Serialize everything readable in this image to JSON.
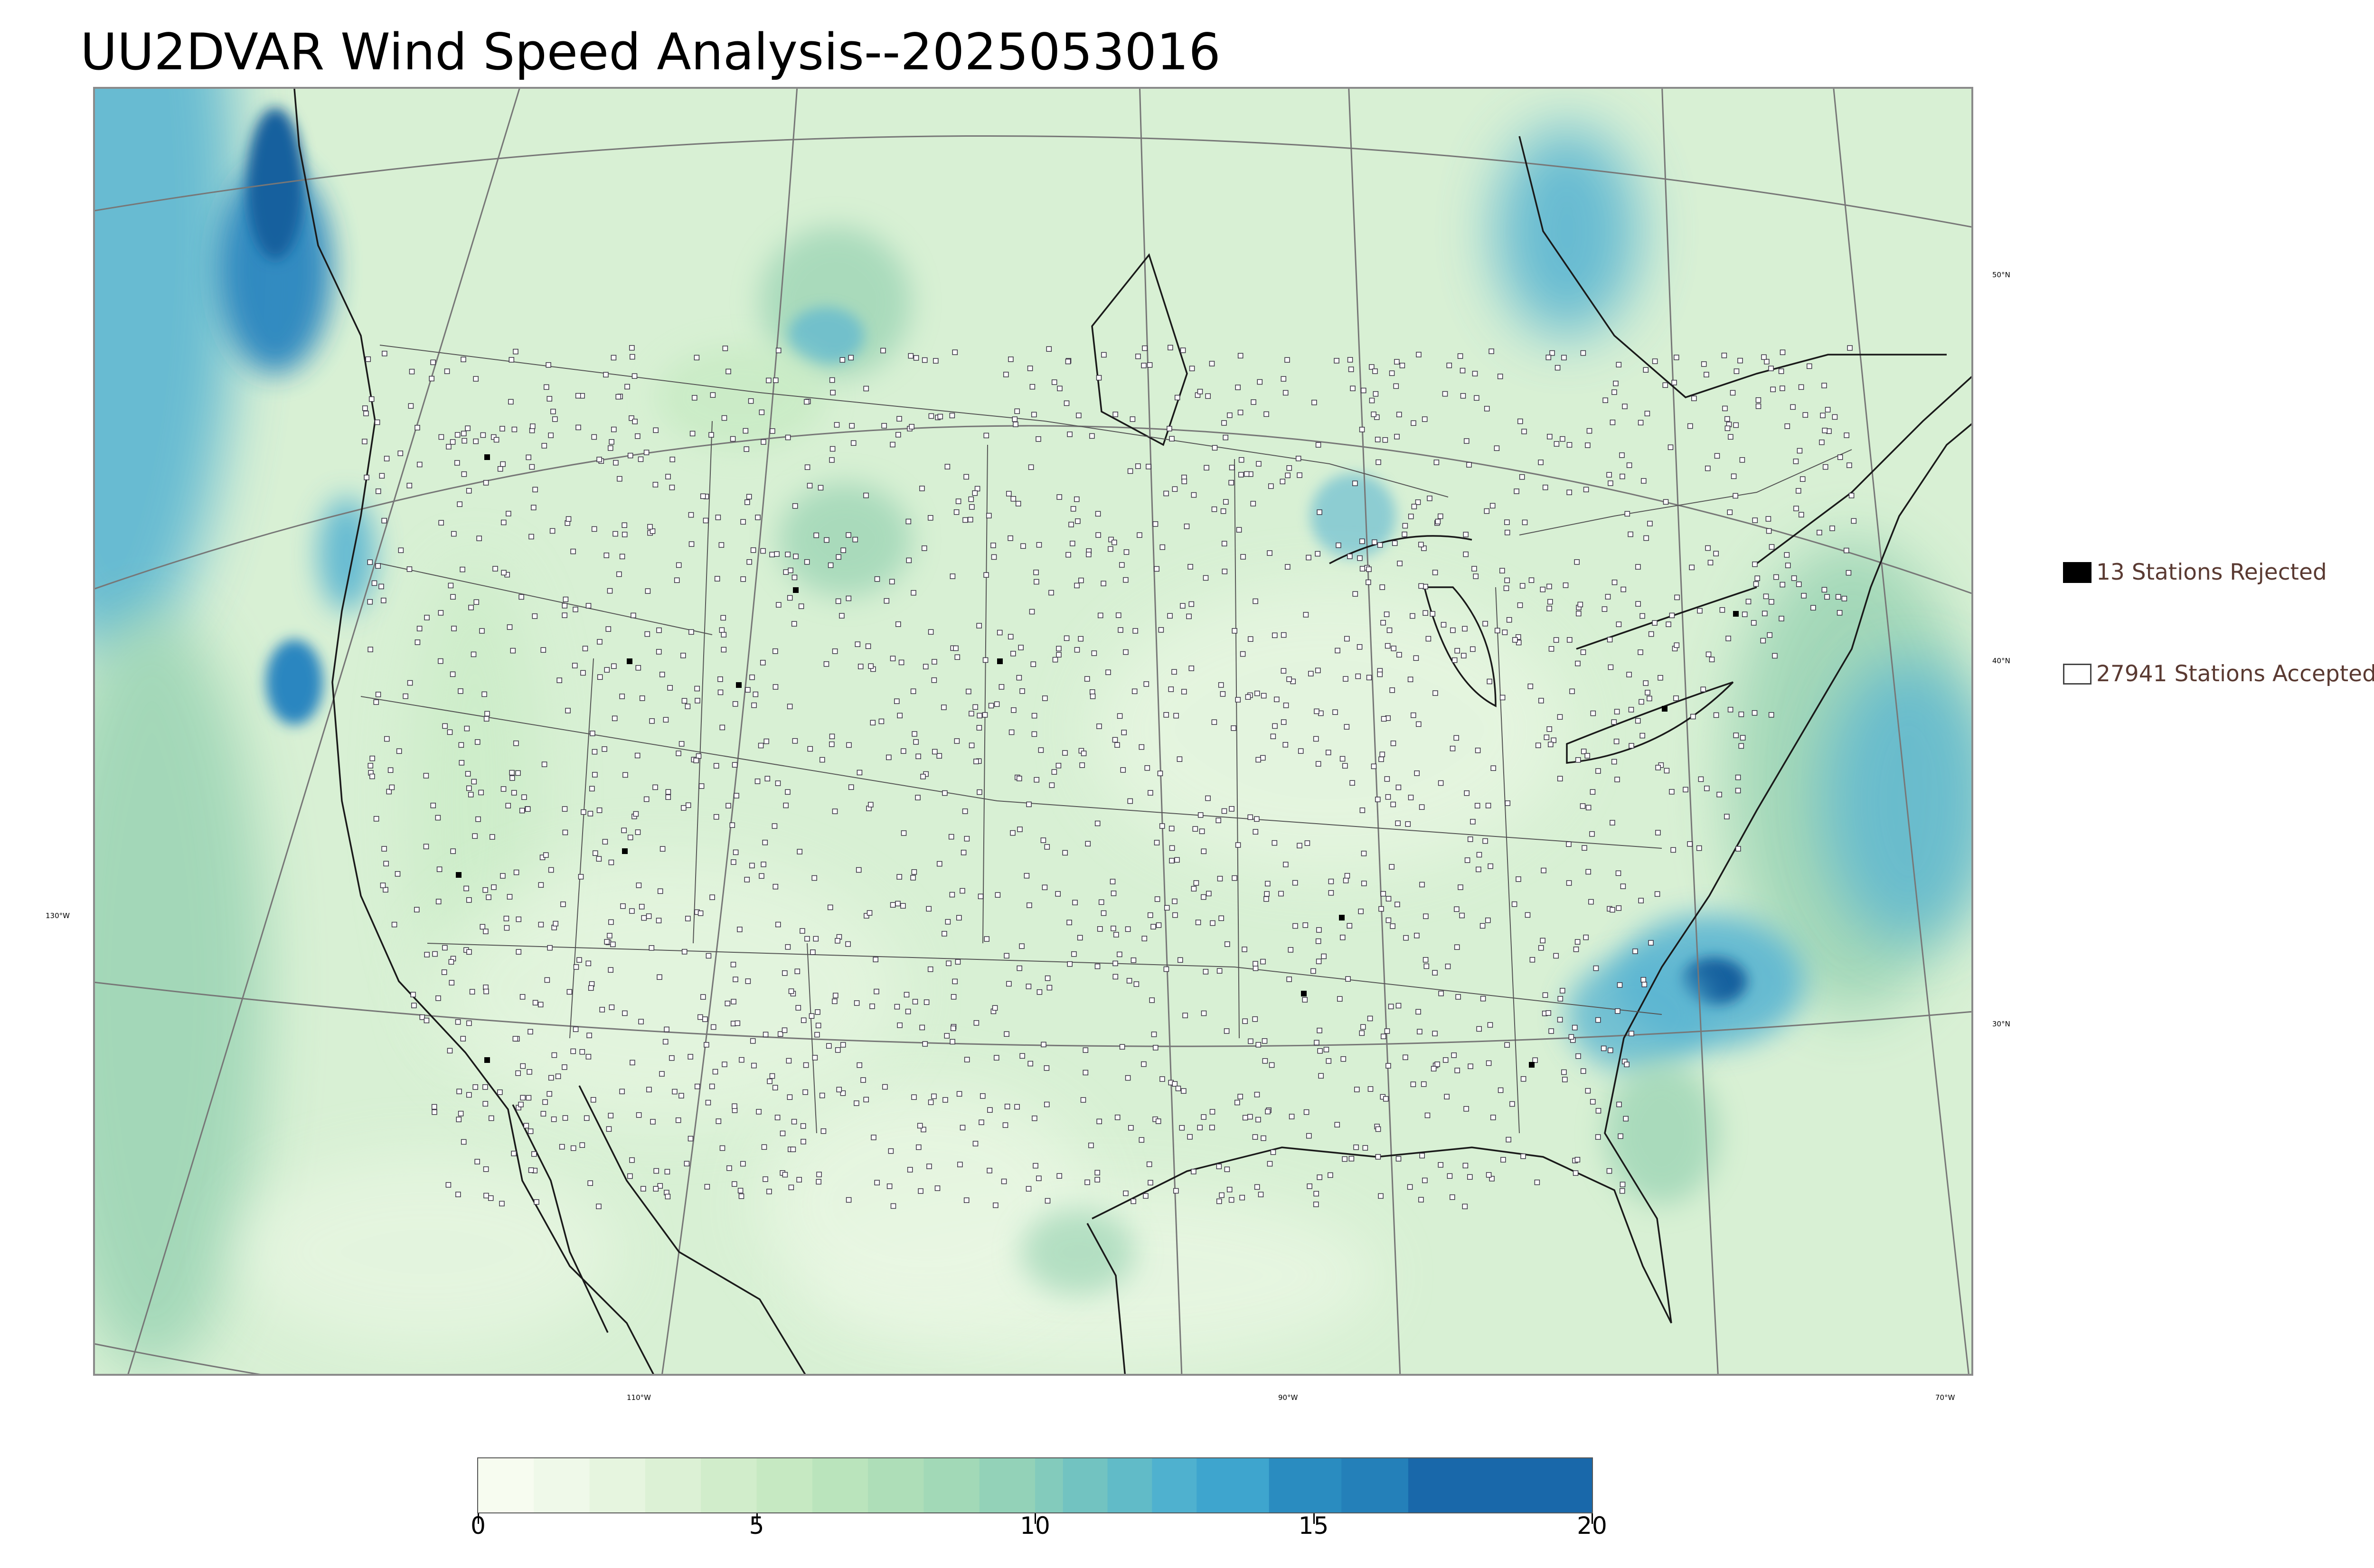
{
  "title": "UU2DVAR Wind Speed Analysis--2025053016",
  "map": {
    "projection": "lambert-conformal",
    "meridian_labels": [
      "130°W",
      "110°W",
      "90°W",
      "70°W"
    ],
    "parallel_labels": [
      "50°N",
      "40°N",
      "30°N"
    ],
    "shading_colors": {
      "calm": "#e9f7e3",
      "light": "#c8ebc4",
      "moderate": "#9ed5b6",
      "fresh": "#5bb6d2",
      "strong": "#2b86c0",
      "gale": "#14609e"
    }
  },
  "legend": {
    "rejected": {
      "count": "13",
      "label": "13 Stations Rejected",
      "swatch_color": "#000000"
    },
    "accepted": {
      "count": "27941",
      "label": "27941 Stations Accepted",
      "swatch_color": "#ffffff"
    }
  },
  "colorbar": {
    "min": 0,
    "max": 20,
    "ticks": [
      "0",
      "5",
      "10",
      "15",
      "20"
    ],
    "tick_values": [
      0,
      5,
      10,
      15,
      20
    ],
    "levels": [
      0,
      1,
      2,
      3,
      4,
      5,
      6,
      7,
      8,
      9,
      10,
      11,
      12,
      13,
      14,
      15,
      16,
      17,
      18,
      19,
      20
    ],
    "colors": [
      "#f7fcf0",
      "#eff9e9",
      "#e6f5df",
      "#dcf1d5",
      "#d1edcb",
      "#c6e9c2",
      "#bae4bc",
      "#aedeb8",
      "#a2d9b7",
      "#93d2b8",
      "#83cbbc",
      "#72c3c1",
      "#61bbc8",
      "#4fb1cf",
      "#3ea5ce",
      "#3299c8",
      "#2a8cc0",
      "#2480b9",
      "#1e74b2",
      "#1968aa"
    ],
    "band_edges": [
      0,
      1,
      2,
      3,
      4,
      5,
      6,
      7,
      8,
      9,
      10,
      10.5,
      11.3,
      12.1,
      12.9,
      14.2,
      15.5,
      16.7,
      20
    ]
  }
}
